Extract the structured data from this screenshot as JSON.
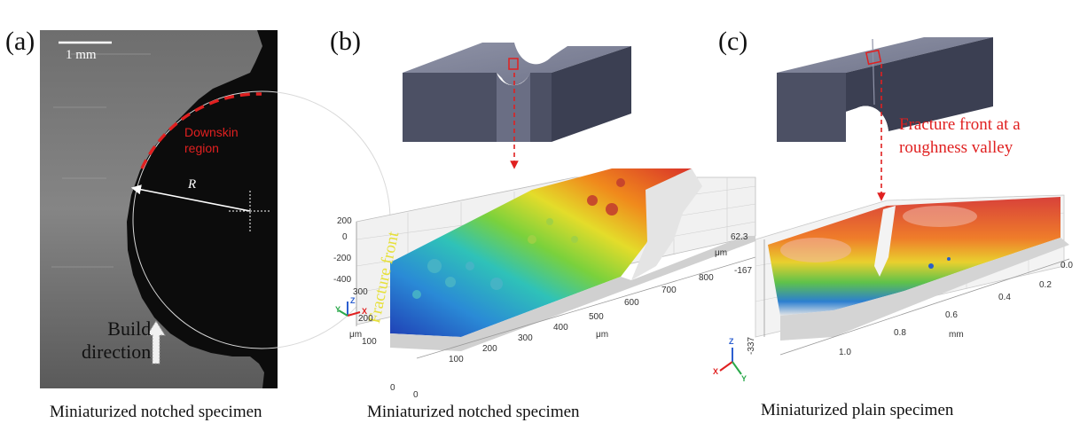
{
  "figure": {
    "panels": [
      {
        "letter": "(a)",
        "caption": "Miniaturized notched specimen",
        "scale_bar": "1 mm",
        "downskin_label": [
          "Downskin",
          "region"
        ],
        "radius_label": "R",
        "build_direction_label": [
          "Build",
          "direction"
        ]
      },
      {
        "letter": "(b)",
        "caption": "Miniaturized notched specimen",
        "fracture_front_label": "Fracture front",
        "z_ticks": [
          "200",
          "0",
          "-200",
          "-400"
        ],
        "y_ticks": [
          "300",
          "200",
          "100",
          "0"
        ],
        "y_unit": "μm",
        "x_ticks": [
          "0",
          "100",
          "200",
          "300",
          "400",
          "500",
          "600",
          "700",
          "800"
        ],
        "x_unit": "μm",
        "axis_letters": [
          "Z",
          "Y",
          "X"
        ]
      },
      {
        "letter": "(c)",
        "caption": "Miniaturized plain specimen",
        "fracture_front_label": [
          "Fracture front at a",
          "roughness valley"
        ],
        "z_ticks": [
          "62.3",
          "-167",
          "-337"
        ],
        "z_unit": "μm",
        "x_ticks": [
          "1.0",
          "0.8",
          "0.6",
          "0.4",
          "0.2",
          "0.0"
        ],
        "x_unit": "mm",
        "axis_letters": [
          "Z",
          "X",
          "Y"
        ]
      }
    ]
  }
}
